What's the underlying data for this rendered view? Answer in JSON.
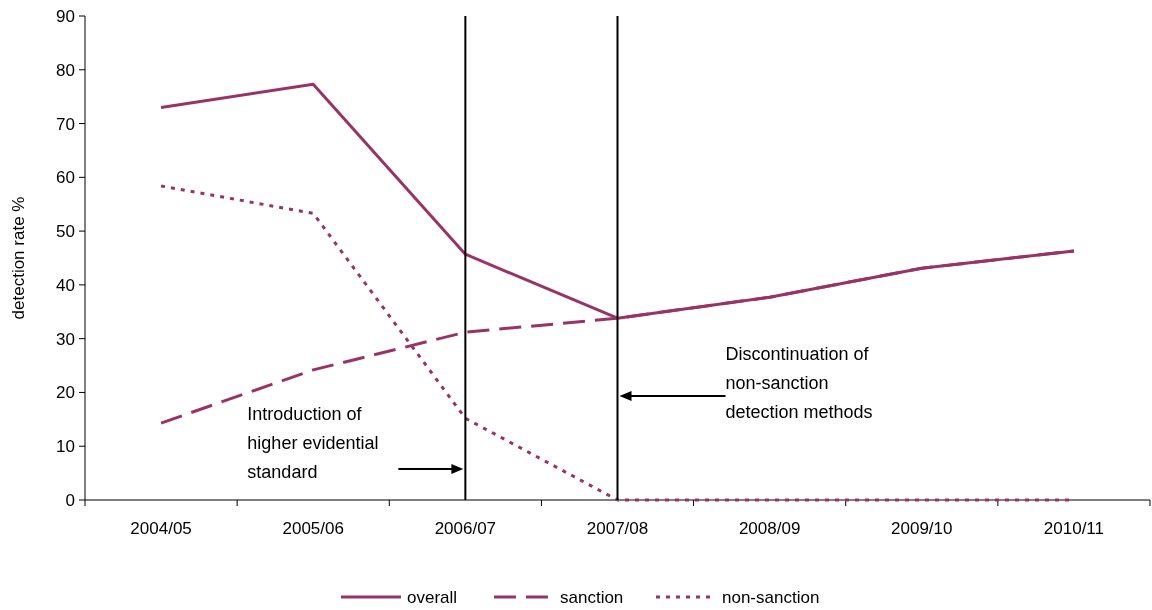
{
  "chart_data": {
    "type": "line",
    "ylabel": "detection rate %",
    "categories": [
      "2004/05",
      "2005/06",
      "2006/07",
      "2007/08",
      "2008/09",
      "2009/10",
      "2010/11"
    ],
    "series": [
      {
        "name": "overall",
        "color": "#993366",
        "line_style": "solid",
        "values": [
          73,
          77.3,
          45.7,
          33.8,
          37.7,
          43.1,
          46.3
        ]
      },
      {
        "name": "sanction",
        "color": "#993366",
        "line_style": "dashed",
        "values": [
          14.3,
          24.2,
          31.2,
          33.8,
          37.7,
          43.1,
          46.3
        ]
      },
      {
        "name": "non-sanction",
        "color": "#993366",
        "line_style": "dotted",
        "values": [
          58.4,
          53.3,
          15.2,
          0,
          0,
          0,
          0
        ]
      }
    ],
    "ylim": [
      0,
      90
    ],
    "yticks": [
      0,
      10,
      20,
      30,
      40,
      50,
      60,
      70,
      80,
      90
    ],
    "grid": false,
    "marker": "none",
    "legend": "bottom",
    "ref_lines": [
      {
        "axis": "x",
        "value": "2006/07",
        "color": "#000000"
      },
      {
        "axis": "x",
        "value": "2007/08",
        "color": "#000000"
      }
    ],
    "annotations": [
      "Introduction of higher evidential standard",
      "Discontinuation of non-sanction detection methods"
    ]
  }
}
